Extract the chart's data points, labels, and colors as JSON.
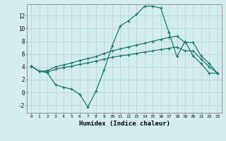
{
  "xlabel": "Humidex (Indice chaleur)",
  "ylabel": "",
  "bg_color": "#d4ecee",
  "line_color": "#1a7a6e",
  "grid_color": "#b8d8da",
  "xlim": [
    -0.5,
    23.5
  ],
  "ylim": [
    -3.2,
    13.8
  ],
  "xticks": [
    0,
    1,
    2,
    3,
    4,
    5,
    6,
    7,
    8,
    9,
    10,
    11,
    12,
    13,
    14,
    15,
    16,
    17,
    18,
    19,
    20,
    21,
    22,
    23
  ],
  "yticks": [
    -2,
    0,
    2,
    4,
    6,
    8,
    10,
    12
  ],
  "line1_x": [
    0,
    1,
    2,
    3,
    4,
    5,
    6,
    7,
    8,
    9,
    10,
    11,
    12,
    13,
    14,
    15,
    16,
    17,
    18,
    19,
    20,
    21,
    22,
    23
  ],
  "line1_y": [
    4.1,
    3.3,
    3.1,
    1.2,
    0.8,
    0.5,
    -0.3,
    -2.3,
    0.2,
    3.5,
    7.3,
    10.4,
    11.2,
    12.2,
    13.5,
    13.5,
    13.2,
    9.4,
    5.6,
    8.0,
    5.7,
    4.5,
    3.0,
    3.0
  ],
  "line2_x": [
    0,
    1,
    2,
    3,
    4,
    5,
    6,
    7,
    8,
    9,
    10,
    11,
    12,
    13,
    14,
    15,
    16,
    17,
    18,
    19,
    20,
    21,
    22,
    23
  ],
  "line2_y": [
    4.1,
    3.3,
    3.4,
    4.0,
    4.3,
    4.6,
    5.0,
    5.3,
    5.6,
    6.1,
    6.5,
    6.8,
    7.1,
    7.4,
    7.7,
    8.0,
    8.3,
    8.6,
    8.8,
    7.8,
    7.8,
    5.7,
    4.5,
    3.0
  ],
  "line3_x": [
    0,
    1,
    2,
    3,
    4,
    5,
    6,
    7,
    8,
    9,
    10,
    11,
    12,
    13,
    14,
    15,
    16,
    17,
    18,
    19,
    20,
    21,
    22,
    23
  ],
  "line3_y": [
    4.1,
    3.3,
    3.2,
    3.6,
    3.9,
    4.1,
    4.4,
    4.6,
    4.9,
    5.2,
    5.5,
    5.7,
    5.9,
    6.1,
    6.3,
    6.5,
    6.7,
    6.9,
    7.1,
    6.5,
    6.5,
    5.2,
    4.0,
    3.0
  ]
}
